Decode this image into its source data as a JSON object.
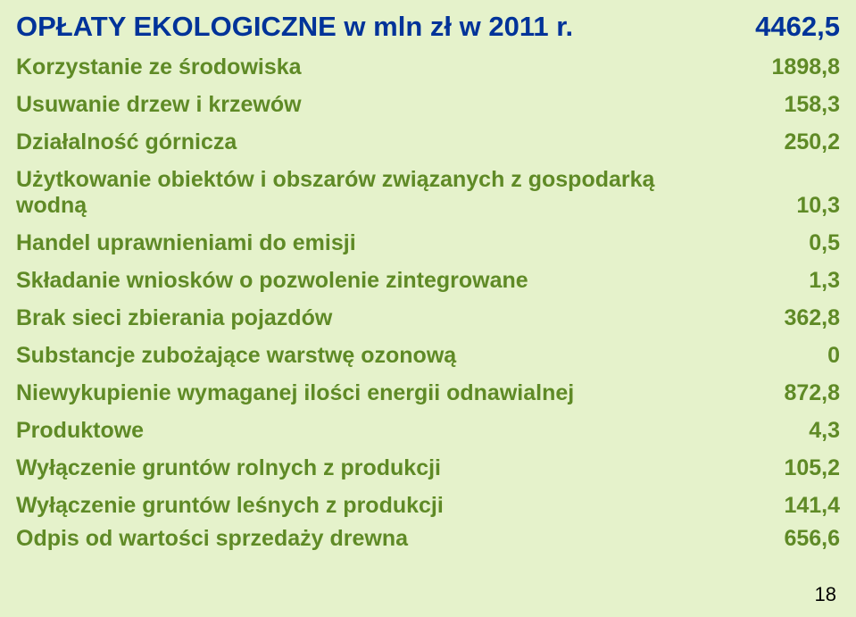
{
  "title": {
    "label": "OPŁATY EKOLOGICZNE w mln zł w 2011 r.",
    "value": "4462,5",
    "color": "#003399",
    "fontsize": 31
  },
  "rows": [
    {
      "label": "Korzystanie ze środowiska",
      "value": "1898,8"
    },
    {
      "label": "Usuwanie drzew i krzewów",
      "value": "158,3"
    },
    {
      "label": "Działalność górnicza",
      "value": "250,2"
    },
    {
      "label": "Użytkowanie obiektów i obszarów związanych z gospodarką wodną",
      "value": "10,3",
      "multiline": true
    },
    {
      "label": "Handel uprawnieniami do emisji",
      "value": "0,5"
    },
    {
      "label": "Składanie wniosków o pozwolenie zintegrowane",
      "value": "1,3"
    },
    {
      "label": "Brak sieci zbierania pojazdów",
      "value": "362,8"
    },
    {
      "label": "Substancje zubożające warstwę ozonową",
      "value": "0"
    },
    {
      "label": "Niewykupienie wymaganej ilości energii odnawialnej",
      "value": "872,8"
    },
    {
      "label": "Produktowe",
      "value": "4,3"
    },
    {
      "label": "Wyłączenie gruntów rolnych z produkcji",
      "value": "105,2"
    },
    {
      "label": "Wyłączenie gruntów leśnych z produkcji",
      "value": "141,4"
    },
    {
      "label": "Odpis od wartości sprzedaży drewna",
      "value": "656,6"
    }
  ],
  "row_style": {
    "color": "#5f8a26",
    "fontsize": 25,
    "fontweight": 700
  },
  "background_color": "#e5f2cb",
  "page_number": "18"
}
